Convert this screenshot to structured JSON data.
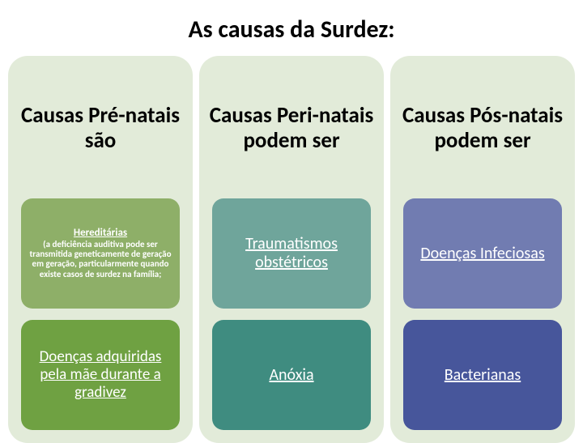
{
  "title": {
    "text": "As causas da Surdez:",
    "fontsize": 30
  },
  "layout": {
    "background": "#ffffff",
    "column_bg": "#e2ebd9",
    "column_border_radius": 24,
    "cell_border_radius": 14,
    "title_color": "#000000",
    "header_fontsize": 27,
    "header_color": "#000000",
    "cell_text_color": "#ffffff"
  },
  "columns": [
    {
      "header": "Causas Pré-natais são",
      "cells": [
        {
          "title": "Hereditárias",
          "title_fontsize": 13,
          "desc": "(a deficiência auditiva pode ser transmitida geneticamente de geração em geração, particularmente quando existe casos de surdez na família;",
          "desc_fontsize": 11,
          "bg": "#8eaf68"
        },
        {
          "title": "Doenças adquiridas pela mãe durante a gradivez",
          "title_fontsize": 19,
          "bg": "#6fa142"
        }
      ]
    },
    {
      "header": "Causas Peri-natais podem ser",
      "cells": [
        {
          "title": "Traumatismos obstétricos",
          "title_fontsize": 20,
          "bg": "#6fa59b"
        },
        {
          "title": "Anóxia",
          "title_fontsize": 20,
          "bg": "#3f8c80"
        }
      ]
    },
    {
      "header": "Causas Pós-natais podem ser",
      "cells": [
        {
          "title": "Doenças Infeciosas",
          "title_fontsize": 20,
          "bg": "#717cb1"
        },
        {
          "title": "Bacterianas",
          "title_fontsize": 20,
          "bg": "#47569b"
        }
      ]
    }
  ]
}
